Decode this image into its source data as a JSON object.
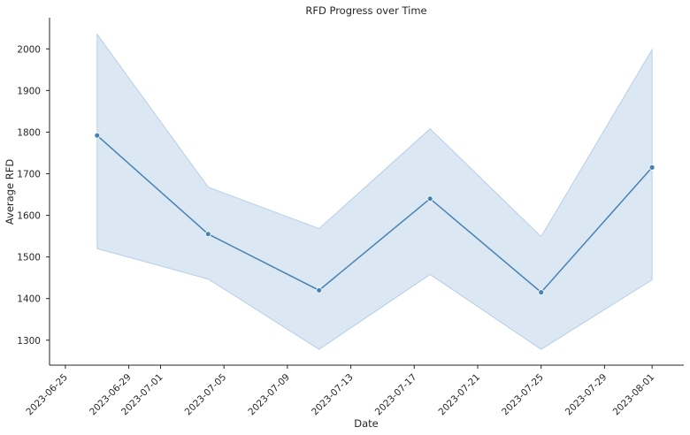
{
  "chart_data": {
    "type": "line",
    "title": "RFD Progress over Time",
    "xlabel": "Date",
    "ylabel": "Average RFD",
    "x_ticks": [
      "2023-06-25",
      "2023-06-29",
      "2023-07-01",
      "2023-07-05",
      "2023-07-09",
      "2023-07-13",
      "2023-07-17",
      "2023-07-21",
      "2023-07-25",
      "2023-07-29",
      "2023-08-01"
    ],
    "y_ticks": [
      1300,
      1400,
      1500,
      1600,
      1700,
      1800,
      1900,
      2000
    ],
    "ylim": [
      1240,
      2075
    ],
    "xlim": [
      "2023-06-24",
      "2023-08-03"
    ],
    "grid": false,
    "series": [
      {
        "x": [
          "2023-06-27",
          "2023-07-04",
          "2023-07-11",
          "2023-07-18",
          "2023-07-25",
          "2023-08-01"
        ],
        "values": [
          1792,
          1555,
          1420,
          1640,
          1415,
          1715
        ],
        "lower": [
          1520,
          1447,
          1278,
          1458,
          1278,
          1445
        ],
        "upper": [
          2035,
          1668,
          1568,
          1808,
          1549,
          1998
        ]
      }
    ],
    "colors": {
      "line": "#4682b4",
      "band": "#b8cfe6"
    }
  }
}
